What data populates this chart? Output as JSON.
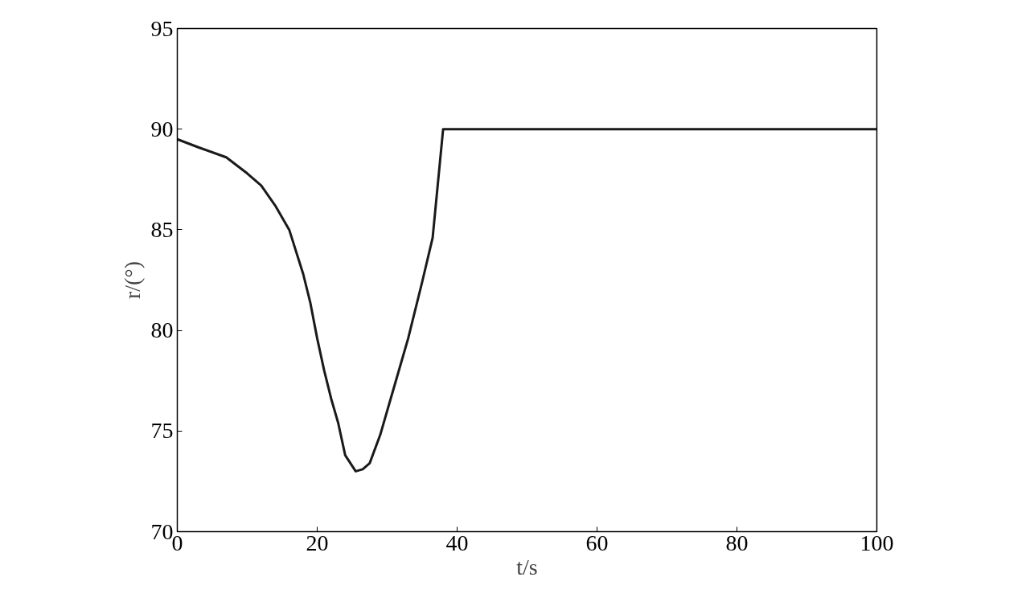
{
  "chart_data": {
    "type": "line",
    "xlabel": "t/s",
    "ylabel": "r/(°)",
    "x": [
      0,
      3,
      7,
      10,
      12,
      14,
      16,
      18,
      19,
      20,
      21,
      22,
      23,
      24,
      25.5,
      26.5,
      27.5,
      29,
      31,
      33,
      35,
      36.5,
      38,
      100
    ],
    "series": [
      {
        "color": "#1a1a1a",
        "values": [
          89.5,
          89.1,
          88.6,
          87.8,
          87.2,
          86.2,
          85.0,
          82.8,
          81.4,
          79.6,
          78.0,
          76.6,
          75.4,
          73.8,
          73.0,
          73.1,
          73.4,
          74.8,
          77.2,
          79.6,
          82.4,
          84.6,
          90.0,
          90.0
        ]
      }
    ],
    "xlim": [
      0,
      100
    ],
    "xticks": [
      0,
      20,
      40,
      60,
      80,
      100
    ],
    "ylim": [
      70,
      95
    ],
    "yticks": [
      70,
      75,
      80,
      85,
      90,
      95
    ],
    "grid": false
  }
}
